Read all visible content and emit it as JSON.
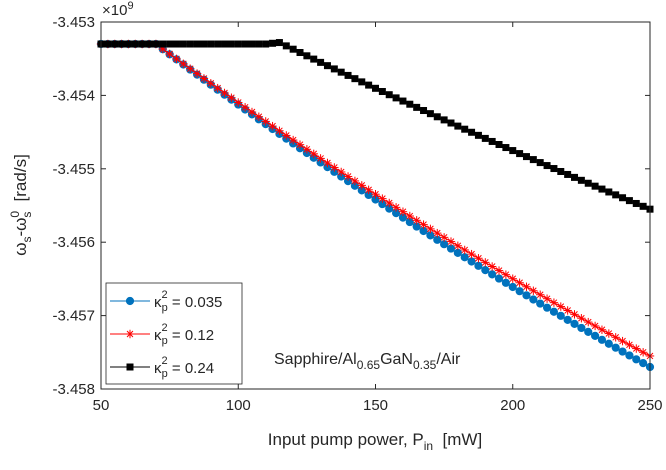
{
  "chart_data": {
    "type": "line",
    "xlabel": "Input pump power, P_in [mW]",
    "xlabel_main": "Input pump power, P",
    "xlabel_sub": "in",
    "xlabel_units": "[mW]",
    "ylabel": "ω_s-ω_s^0 [rad/s]",
    "ylabel_omega1": "ω",
    "ylabel_sub1": "s",
    "ylabel_dash": "-ω",
    "ylabel_sub2": "s",
    "ylabel_sup2": "0",
    "ylabel_units": "[rad/s]",
    "y_exponent_base": "×10",
    "y_exponent_power": "9",
    "xlim": [
      50,
      250
    ],
    "ylim": [
      -3.458,
      -3.453
    ],
    "y_scale_factor": 1000000000.0,
    "xticks": [
      50,
      100,
      150,
      200,
      250
    ],
    "xtick_labels": [
      "50",
      "100",
      "150",
      "200",
      "250"
    ],
    "yticks": [
      -3.453,
      -3.454,
      -3.455,
      -3.456,
      -3.457,
      -3.458
    ],
    "ytick_labels": [
      "-3.453",
      "-3.454",
      "-3.455",
      "-3.456",
      "-3.457",
      "-3.458"
    ],
    "grid": false,
    "legend_position": "bottom-left",
    "annotation": {
      "pre": "Sapphire/Al",
      "sub1": "0.65",
      "mid": "GaN",
      "sub2": "0.35",
      "post": "/Air"
    },
    "series": [
      {
        "legend_kappa": "κ",
        "legend_sup": "2",
        "legend_sub": "p",
        "legend_value": " = 0.035",
        "color": "#0072BD",
        "marker": "circle",
        "segments": [
          {
            "x0": 50,
            "x1": 70,
            "type": "flat",
            "y": -3.4533
          },
          {
            "x0": 70,
            "x1": 250,
            "type": "decay",
            "y0": -3.4533,
            "y1": -3.4577,
            "curve": 0.15
          }
        ]
      },
      {
        "legend_kappa": "κ",
        "legend_sup": "2",
        "legend_sub": "p",
        "legend_value": " = 0.12",
        "color": "#FF0000",
        "marker": "asterisk",
        "segments": [
          {
            "x0": 50,
            "x1": 70,
            "type": "flat",
            "y": -3.4533
          },
          {
            "x0": 70,
            "x1": 250,
            "type": "decay",
            "y0": -3.4533,
            "y1": -3.45755,
            "curve": 0.15
          }
        ]
      },
      {
        "legend_kappa": "κ",
        "legend_sup": "2",
        "legend_sub": "p",
        "legend_value": " = 0.24",
        "color": "#000000",
        "marker": "square",
        "segments": [
          {
            "x0": 50,
            "x1": 110,
            "type": "flat",
            "y": -3.4533
          },
          {
            "x0": 110,
            "x1": 115,
            "type": "linear",
            "y0": -3.4533,
            "y1": -3.45328
          },
          {
            "x0": 115,
            "x1": 250,
            "type": "decay",
            "y0": -3.45328,
            "y1": -3.45555,
            "curve": 0.08
          }
        ]
      }
    ]
  }
}
